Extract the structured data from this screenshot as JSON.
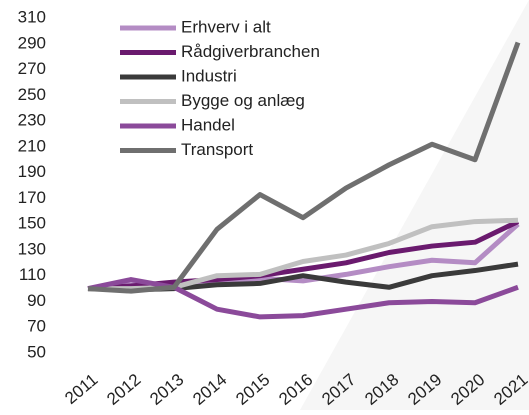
{
  "chart_data": {
    "type": "line",
    "categories": [
      "2011",
      "2012",
      "2013",
      "2014",
      "2015",
      "2016",
      "2017",
      "2018",
      "2019",
      "2020",
      "2021"
    ],
    "series": [
      {
        "name": "Erhverv i alt",
        "color": "#b48cc4",
        "values": [
          100,
          103,
          103,
          105,
          108,
          106,
          111,
          117,
          122,
          120,
          150
        ]
      },
      {
        "name": "Rådgiverbranchen",
        "color": "#6a1a6e",
        "values": [
          100,
          102,
          105,
          107,
          110,
          115,
          120,
          128,
          133,
          136,
          152
        ]
      },
      {
        "name": "Industri",
        "color": "#3a3a3a",
        "values": [
          100,
          99,
          100,
          103,
          104,
          110,
          105,
          101,
          110,
          114,
          119
        ]
      },
      {
        "name": "Bygge og anlæg",
        "color": "#c0c0c0",
        "values": [
          100,
          100,
          101,
          110,
          111,
          121,
          126,
          135,
          148,
          152,
          153
        ]
      },
      {
        "name": "Handel",
        "color": "#8b4a9a",
        "values": [
          100,
          107,
          101,
          84,
          78,
          79,
          84,
          89,
          90,
          89,
          101
        ]
      },
      {
        "name": "Transport",
        "color": "#6f6f6f",
        "values": [
          100,
          98,
          101,
          146,
          173,
          155,
          178,
          196,
          212,
          200,
          291
        ]
      }
    ],
    "ylim": [
      50,
      310
    ],
    "yticks": [
      50,
      70,
      90,
      110,
      130,
      150,
      170,
      190,
      210,
      230,
      250,
      270,
      290,
      310
    ],
    "grid": false,
    "legend": "top-left"
  }
}
